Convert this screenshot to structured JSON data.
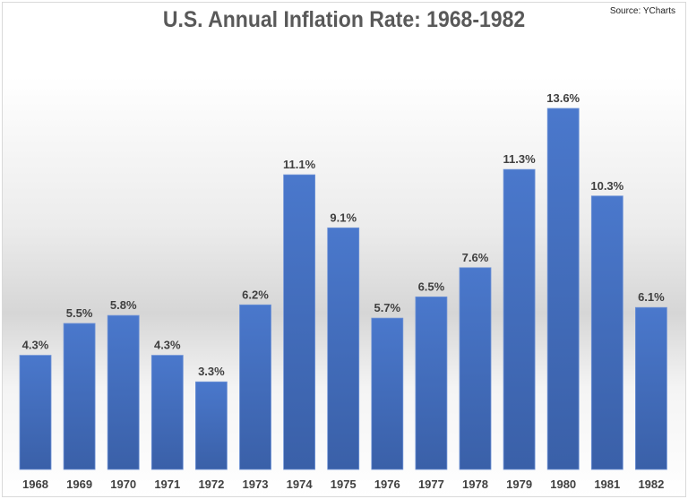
{
  "chart_data": {
    "type": "bar",
    "title": "U.S. Annual Inflation Rate: 1968-1982",
    "source": "Source: YCharts",
    "xlabel": "",
    "ylabel": "",
    "categories": [
      "1968",
      "1969",
      "1970",
      "1971",
      "1972",
      "1973",
      "1974",
      "1975",
      "1976",
      "1977",
      "1978",
      "1979",
      "1980",
      "1981",
      "1982"
    ],
    "values": [
      4.3,
      5.5,
      5.8,
      4.3,
      3.3,
      6.2,
      11.1,
      9.1,
      5.7,
      6.5,
      7.6,
      11.3,
      13.6,
      10.3,
      6.1
    ],
    "data_labels": [
      "4.3%",
      "5.5%",
      "5.8%",
      "4.3%",
      "3.3%",
      "6.2%",
      "11.1%",
      "9.1%",
      "5.7%",
      "6.5%",
      "7.6%",
      "11.3%",
      "13.6%",
      "10.3%",
      "6.1%"
    ],
    "ylim": [
      0,
      13.6
    ],
    "grid": false,
    "legend": "none",
    "bar_color": "#4472c4"
  }
}
